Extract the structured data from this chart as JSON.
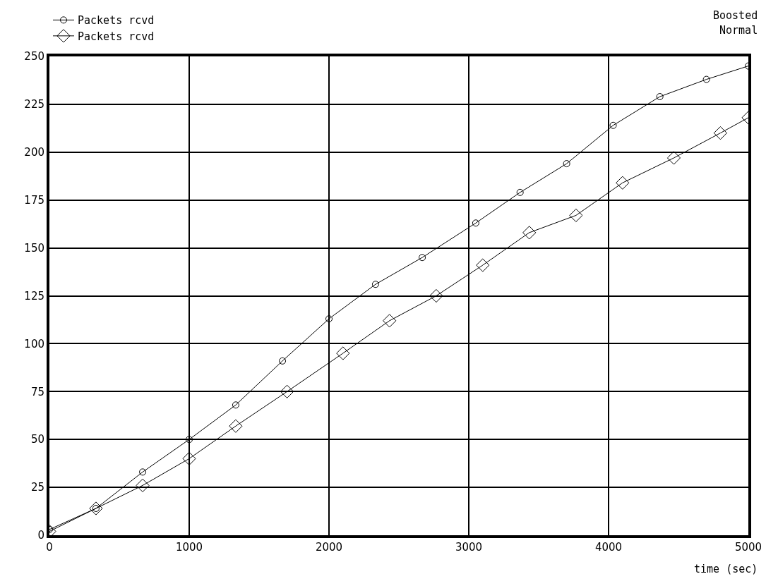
{
  "chart_data": {
    "type": "line",
    "xlabel": "time (sec)",
    "annotations": [
      "Boosted",
      "Normal"
    ],
    "xlim": [
      0,
      5000
    ],
    "xticks": [
      0,
      1000,
      2000,
      3000,
      4000,
      5000
    ],
    "ylim": [
      0,
      250
    ],
    "yticks": [
      0,
      25,
      50,
      75,
      100,
      125,
      150,
      175,
      200,
      225,
      250
    ],
    "grid": true,
    "legend": "top left",
    "line_style": "solid",
    "series": [
      {
        "name": "Packets rcvd",
        "color": "#000000",
        "marker": "circle",
        "x": [
          0,
          333,
          667,
          1000,
          1333,
          1667,
          2000,
          2333,
          2667,
          3050,
          3367,
          3700,
          4033,
          4367,
          4700,
          5000
        ],
        "values": [
          3,
          14,
          33,
          50,
          68,
          91,
          113,
          131,
          145,
          163,
          179,
          194,
          214,
          229,
          238,
          245
        ]
      },
      {
        "name": "Packets rcvd",
        "color": "#000000",
        "marker": "diamond",
        "x": [
          0,
          333,
          667,
          1000,
          1333,
          1700,
          2100,
          2433,
          2767,
          3100,
          3433,
          3767,
          4100,
          4467,
          4800,
          5000
        ],
        "values": [
          2,
          14,
          26,
          40,
          57,
          75,
          95,
          112,
          125,
          141,
          158,
          167,
          184,
          197,
          210,
          218
        ]
      }
    ]
  }
}
